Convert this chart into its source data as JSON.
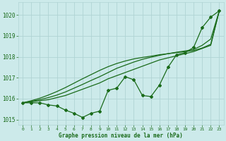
{
  "x": [
    0,
    1,
    2,
    3,
    4,
    5,
    6,
    7,
    8,
    9,
    10,
    11,
    12,
    13,
    14,
    15,
    16,
    17,
    18,
    19,
    20,
    21,
    22,
    23
  ],
  "smooth1": [
    1015.8,
    1015.85,
    1015.9,
    1015.95,
    1016.05,
    1016.15,
    1016.3,
    1016.45,
    1016.6,
    1016.75,
    1016.95,
    1017.1,
    1017.25,
    1017.4,
    1017.55,
    1017.7,
    1017.85,
    1017.95,
    1018.05,
    1018.15,
    1018.25,
    1018.4,
    1018.55,
    1020.2
  ],
  "smooth2": [
    1015.8,
    1015.87,
    1015.95,
    1016.05,
    1016.17,
    1016.32,
    1016.5,
    1016.68,
    1016.87,
    1017.05,
    1017.25,
    1017.45,
    1017.6,
    1017.75,
    1017.88,
    1017.98,
    1018.07,
    1018.15,
    1018.22,
    1018.28,
    1018.35,
    1018.55,
    1018.85,
    1020.2
  ],
  "smooth3": [
    1015.8,
    1015.9,
    1016.02,
    1016.17,
    1016.34,
    1016.53,
    1016.74,
    1016.95,
    1017.15,
    1017.35,
    1017.53,
    1017.68,
    1017.8,
    1017.9,
    1017.97,
    1018.03,
    1018.1,
    1018.15,
    1018.2,
    1018.25,
    1018.3,
    1018.42,
    1018.6,
    1020.2
  ],
  "data_y": [
    1015.8,
    1015.8,
    1015.8,
    1015.7,
    1015.65,
    1015.45,
    1015.3,
    1015.1,
    1015.3,
    1015.4,
    1016.4,
    1016.5,
    1017.05,
    1016.9,
    1016.15,
    1016.1,
    1016.65,
    1017.5,
    1018.1,
    1018.2,
    1018.45,
    1019.4,
    1019.9,
    1020.2
  ],
  "line_color": "#1a6b1a",
  "bg_color": "#cceaea",
  "grid_color": "#b0d4d4",
  "text_color": "#1a6b1a",
  "xlabel": "Graphe pression niveau de la mer (hPa)",
  "ylim": [
    1014.75,
    1020.6
  ],
  "yticks": [
    1015,
    1016,
    1017,
    1018,
    1019,
    1020
  ],
  "xticks": [
    0,
    1,
    2,
    3,
    4,
    5,
    6,
    7,
    8,
    9,
    10,
    11,
    12,
    13,
    14,
    15,
    16,
    17,
    18,
    19,
    20,
    21,
    22,
    23
  ]
}
